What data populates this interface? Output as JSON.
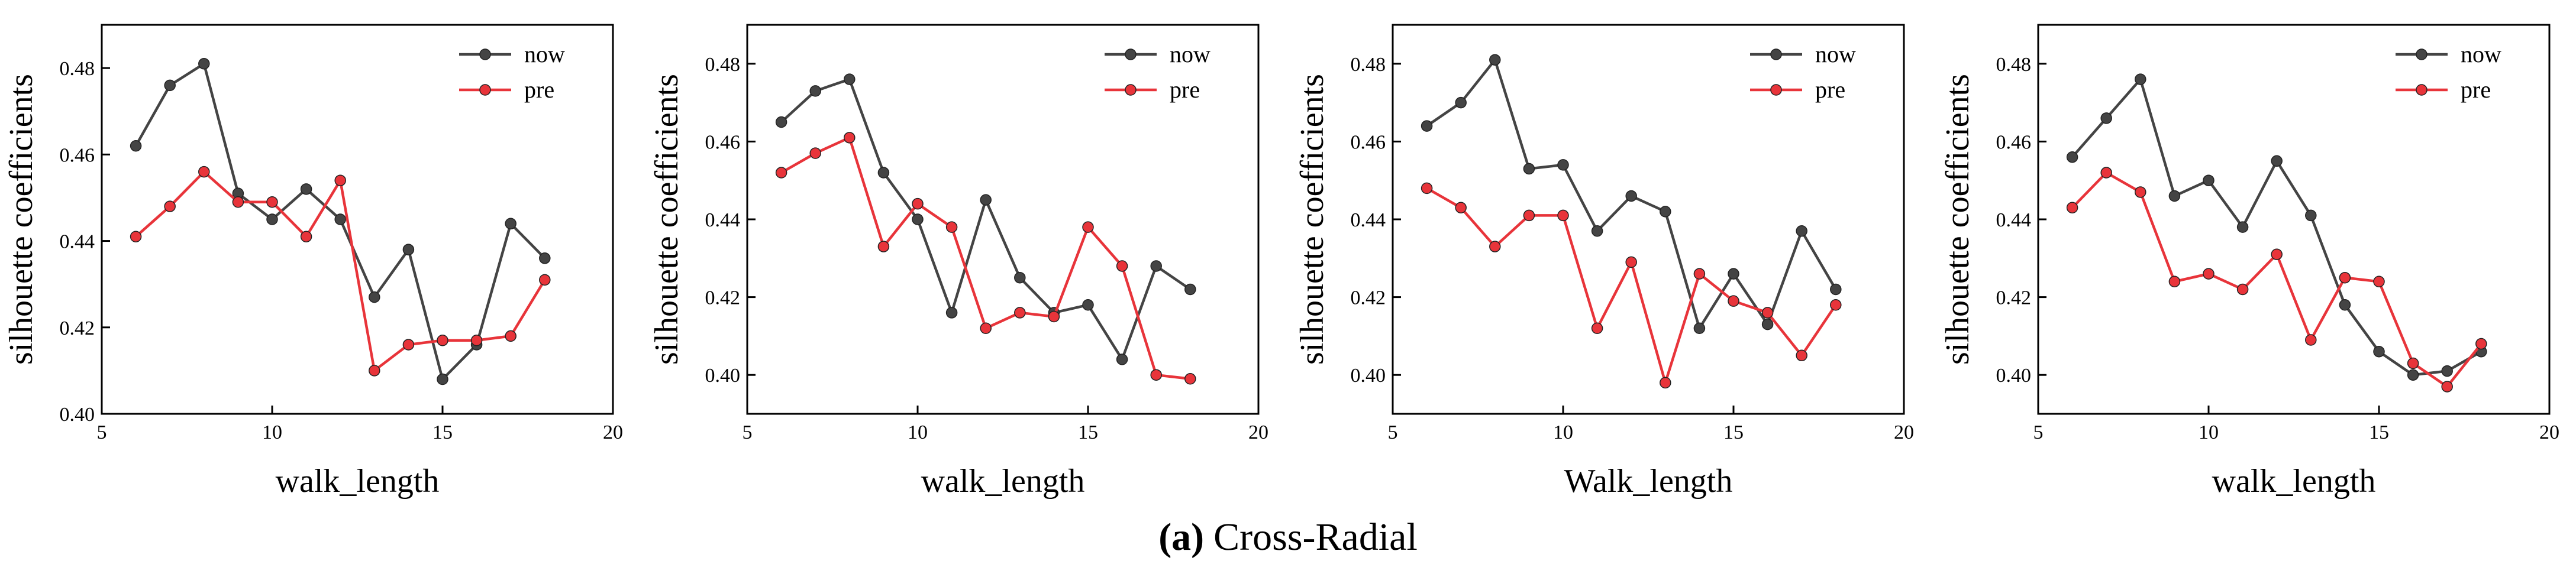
{
  "caption": {
    "letter": "(a)",
    "text": "Cross-Radial"
  },
  "colors": {
    "now": "#444444",
    "pre": "#e8343a"
  },
  "chart_data": [
    {
      "type": "line",
      "xlabel": "walk_length",
      "ylabel": "silhouette coefficients",
      "xlim": [
        5,
        20
      ],
      "ylim": [
        0.4,
        0.49
      ],
      "xticks": [
        "5",
        "10",
        "15",
        "20"
      ],
      "yticks": [
        "0.40",
        "0.42",
        "0.44",
        "0.46",
        "0.48"
      ],
      "legend": "top-right",
      "x": [
        6,
        7,
        8,
        9,
        10,
        11,
        12,
        13,
        14,
        15,
        16,
        17,
        18
      ],
      "series": [
        {
          "name": "now",
          "values": [
            0.462,
            0.476,
            0.481,
            0.451,
            0.445,
            0.452,
            0.445,
            0.427,
            0.438,
            0.408,
            0.416,
            0.444,
            0.436
          ]
        },
        {
          "name": "pre",
          "values": [
            0.441,
            0.448,
            0.456,
            0.449,
            0.449,
            0.441,
            0.454,
            0.41,
            0.416,
            0.417,
            0.417,
            0.418,
            0.431
          ]
        }
      ]
    },
    {
      "type": "line",
      "xlabel": "walk_length",
      "ylabel": "silhouette coefficients",
      "xlim": [
        5,
        20
      ],
      "ylim": [
        0.39,
        0.49
      ],
      "xticks": [
        "5",
        "10",
        "15",
        "20"
      ],
      "yticks": [
        "0.40",
        "0.42",
        "0.44",
        "0.46",
        "0.48"
      ],
      "legend": "top-right",
      "x": [
        6,
        7,
        8,
        9,
        10,
        11,
        12,
        13,
        14,
        15,
        16,
        17,
        18
      ],
      "series": [
        {
          "name": "now",
          "values": [
            0.465,
            0.473,
            0.476,
            0.452,
            0.44,
            0.416,
            0.445,
            0.425,
            0.416,
            0.418,
            0.404,
            0.428,
            0.422
          ]
        },
        {
          "name": "pre",
          "values": [
            0.452,
            0.457,
            0.461,
            0.433,
            0.444,
            0.438,
            0.412,
            0.416,
            0.415,
            0.438,
            0.428,
            0.4,
            0.399
          ]
        }
      ]
    },
    {
      "type": "line",
      "xlabel": "Walk_length",
      "ylabel": "silhouette coefficients",
      "xlim": [
        5,
        20
      ],
      "ylim": [
        0.39,
        0.49
      ],
      "xticks": [
        "5",
        "10",
        "15",
        "20"
      ],
      "yticks": [
        "0.40",
        "0.42",
        "0.44",
        "0.46",
        "0.48"
      ],
      "legend": "top-right",
      "x": [
        6,
        7,
        8,
        9,
        10,
        11,
        12,
        13,
        14,
        15,
        16,
        17,
        18
      ],
      "series": [
        {
          "name": "now",
          "values": [
            0.464,
            0.47,
            0.481,
            0.453,
            0.454,
            0.437,
            0.446,
            0.442,
            0.412,
            0.426,
            0.413,
            0.437,
            0.422
          ]
        },
        {
          "name": "pre",
          "values": [
            0.448,
            0.443,
            0.433,
            0.441,
            0.441,
            0.412,
            0.429,
            0.398,
            0.426,
            0.419,
            0.416,
            0.405,
            0.418
          ]
        }
      ]
    },
    {
      "type": "line",
      "xlabel": "walk_length",
      "ylabel": "silhouette coefficients",
      "xlim": [
        5,
        20
      ],
      "ylim": [
        0.39,
        0.49
      ],
      "xticks": [
        "5",
        "10",
        "15",
        "20"
      ],
      "yticks": [
        "0.40",
        "0.42",
        "0.44",
        "0.46",
        "0.48"
      ],
      "legend": "top-right",
      "x": [
        6,
        7,
        8,
        9,
        10,
        11,
        12,
        13,
        14,
        15,
        16,
        17,
        18
      ],
      "series": [
        {
          "name": "now",
          "values": [
            0.456,
            0.466,
            0.476,
            0.446,
            0.45,
            0.438,
            0.455,
            0.441,
            0.418,
            0.406,
            0.4,
            0.401,
            0.406
          ]
        },
        {
          "name": "pre",
          "values": [
            0.443,
            0.452,
            0.447,
            0.424,
            0.426,
            0.422,
            0.431,
            0.409,
            0.425,
            0.424,
            0.403,
            0.397,
            0.408
          ]
        }
      ]
    }
  ]
}
